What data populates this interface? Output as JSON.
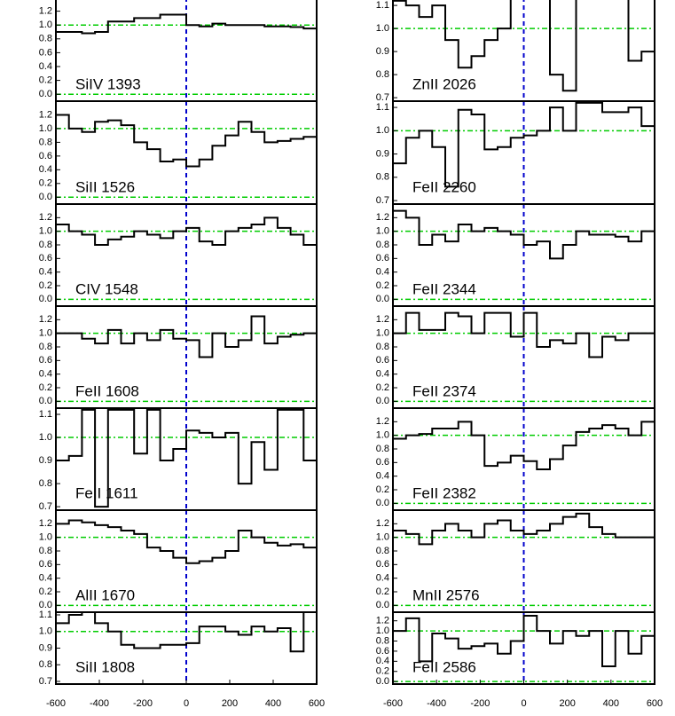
{
  "chart_data": [
    {
      "type": "line",
      "step": true,
      "label": "SiIV 1393",
      "color": "#000000",
      "xlim": [
        -600,
        600
      ],
      "ylim": [
        -0.1,
        1.4
      ],
      "yticks": [
        {
          "value": 0,
          "label": "0.0"
        },
        0.2,
        0.4,
        0.6,
        0.8,
        {
          "value": 1,
          "label": "1.0"
        },
        1.2
      ],
      "reference_lines": [
        0,
        1
      ],
      "reference_color": "#00cc00",
      "vline": 0,
      "vline_color": "#0000cc",
      "x": [
        -570,
        -510,
        -450,
        -390,
        -330,
        -270,
        -210,
        -150,
        -90,
        -30,
        30,
        90,
        150,
        210,
        270,
        330,
        390,
        450,
        510,
        570
      ],
      "values": [
        0.9,
        0.9,
        0.88,
        0.9,
        1.05,
        1.05,
        1.1,
        1.1,
        1.15,
        1.15,
        1.0,
        0.98,
        1.02,
        1.0,
        1.0,
        1.0,
        0.98,
        0.98,
        0.97,
        0.95
      ]
    },
    {
      "type": "line",
      "step": true,
      "label": "SiII 1526",
      "color": "#000000",
      "xlim": [
        -600,
        600
      ],
      "ylim": [
        -0.1,
        1.4
      ],
      "yticks": [
        {
          "value": 0,
          "label": "0.0"
        },
        0.2,
        0.4,
        0.6,
        0.8,
        {
          "value": 1,
          "label": "1.0"
        },
        1.2
      ],
      "reference_lines": [
        0,
        1
      ],
      "reference_color": "#00cc00",
      "vline": 0,
      "vline_color": "#0000cc",
      "x": [
        -570,
        -510,
        -450,
        -390,
        -330,
        -270,
        -210,
        -150,
        -90,
        -30,
        30,
        90,
        150,
        210,
        270,
        330,
        390,
        450,
        510,
        570
      ],
      "values": [
        1.2,
        1.0,
        0.95,
        1.1,
        1.12,
        1.05,
        0.8,
        0.7,
        0.52,
        0.55,
        0.45,
        0.55,
        0.75,
        0.9,
        1.1,
        0.95,
        0.8,
        0.82,
        0.85,
        0.88
      ]
    },
    {
      "type": "line",
      "step": true,
      "label": "CIV 1548",
      "color": "#000000",
      "xlim": [
        -600,
        600
      ],
      "ylim": [
        -0.1,
        1.4
      ],
      "yticks": [
        {
          "value": 0,
          "label": "0.0"
        },
        0.2,
        0.4,
        0.6,
        0.8,
        {
          "value": 1,
          "label": "1.0"
        },
        1.2
      ],
      "reference_lines": [
        0,
        1
      ],
      "reference_color": "#00cc00",
      "vline": 0,
      "vline_color": "#0000cc",
      "x": [
        -570,
        -510,
        -450,
        -390,
        -330,
        -270,
        -210,
        -150,
        -90,
        -30,
        30,
        90,
        150,
        210,
        270,
        330,
        390,
        450,
        510,
        570
      ],
      "values": [
        1.1,
        1.0,
        0.95,
        0.8,
        0.88,
        0.92,
        1.0,
        0.95,
        0.9,
        1.0,
        1.05,
        0.85,
        0.8,
        1.0,
        1.05,
        1.1,
        1.2,
        1.05,
        0.95,
        0.8
      ]
    },
    {
      "type": "line",
      "step": true,
      "label": "FeII 1608",
      "color": "#000000",
      "xlim": [
        -600,
        600
      ],
      "ylim": [
        -0.1,
        1.4
      ],
      "yticks": [
        {
          "value": 0,
          "label": "0.0"
        },
        0.2,
        0.4,
        0.6,
        0.8,
        {
          "value": 1,
          "label": "1.0"
        },
        1.2
      ],
      "reference_lines": [
        0,
        1
      ],
      "reference_color": "#00cc00",
      "vline": 0,
      "vline_color": "#0000cc",
      "x": [
        -570,
        -510,
        -450,
        -390,
        -330,
        -270,
        -210,
        -150,
        -90,
        -30,
        30,
        90,
        150,
        210,
        270,
        330,
        390,
        450,
        510,
        570
      ],
      "values": [
        1.0,
        1.0,
        0.92,
        0.85,
        1.05,
        0.85,
        1.0,
        0.9,
        1.05,
        0.92,
        0.9,
        0.65,
        1.0,
        0.8,
        0.9,
        1.25,
        0.85,
        0.95,
        0.98,
        1.0
      ]
    },
    {
      "type": "line",
      "step": true,
      "label": "FeII 1611",
      "color": "#000000",
      "xlim": [
        -600,
        600
      ],
      "ylim": [
        0.685,
        1.127
      ],
      "yticks": [
        0.7,
        0.8,
        0.9,
        {
          "value": 1,
          "label": "1.0"
        },
        1.1
      ],
      "reference_lines": [
        1
      ],
      "reference_color": "#00cc00",
      "vline": 0,
      "vline_color": "#0000cc",
      "x": [
        -570,
        -510,
        -450,
        -390,
        -330,
        -270,
        -210,
        -150,
        -90,
        -30,
        30,
        90,
        150,
        210,
        270,
        330,
        390,
        450,
        510,
        570
      ],
      "values": [
        0.9,
        0.92,
        1.12,
        0.7,
        1.12,
        1.12,
        0.93,
        1.12,
        0.9,
        0.95,
        1.03,
        1.02,
        1.0,
        1.02,
        0.8,
        0.98,
        0.86,
        1.12,
        1.12,
        0.9
      ]
    },
    {
      "type": "line",
      "step": true,
      "label": "AlII 1670",
      "color": "#000000",
      "xlim": [
        -600,
        600
      ],
      "ylim": [
        -0.1,
        1.4
      ],
      "yticks": [
        {
          "value": 0,
          "label": "0.0"
        },
        0.2,
        0.4,
        0.6,
        0.8,
        {
          "value": 1,
          "label": "1.0"
        },
        1.2
      ],
      "reference_lines": [
        0,
        1
      ],
      "reference_color": "#00cc00",
      "vline": 0,
      "vline_color": "#0000cc",
      "x": [
        -570,
        -510,
        -450,
        -390,
        -330,
        -270,
        -210,
        -150,
        -90,
        -30,
        30,
        90,
        150,
        210,
        270,
        330,
        390,
        450,
        510,
        570
      ],
      "values": [
        1.2,
        1.25,
        1.22,
        1.18,
        1.15,
        1.1,
        1.05,
        0.85,
        0.8,
        0.7,
        0.62,
        0.65,
        0.7,
        0.8,
        1.1,
        1.0,
        0.92,
        0.88,
        0.9,
        0.85
      ]
    },
    {
      "type": "line",
      "step": true,
      "label": "SiII 1808",
      "color": "#000000",
      "xlim": [
        -600,
        600
      ],
      "ylim": [
        0.684,
        1.116
      ],
      "yticks": [
        0.7,
        0.8,
        0.9,
        {
          "value": 1,
          "label": "1.0"
        },
        1.1
      ],
      "reference_lines": [
        1
      ],
      "reference_color": "#00cc00",
      "vline": 0,
      "vline_color": "#0000cc",
      "xticks": [
        -600,
        -400,
        -200,
        0,
        200,
        400,
        600
      ],
      "x": [
        -570,
        -510,
        -450,
        -390,
        -330,
        -270,
        -210,
        -150,
        -90,
        -30,
        30,
        90,
        150,
        210,
        270,
        330,
        390,
        450,
        510,
        570
      ],
      "values": [
        1.05,
        1.1,
        1.12,
        1.05,
        1.0,
        0.92,
        0.9,
        0.9,
        0.92,
        0.92,
        0.93,
        1.03,
        1.03,
        1.0,
        0.98,
        1.03,
        1.0,
        1.02,
        0.88,
        1.12
      ]
    },
    {
      "type": "line",
      "step": true,
      "label": "ZnII 2026",
      "color": "#000000",
      "xlim": [
        -600,
        600
      ],
      "ylim": [
        0.685,
        1.135
      ],
      "yticks": [
        0.7,
        0.8,
        0.9,
        {
          "value": 1,
          "label": "1.0"
        },
        1.1
      ],
      "reference_lines": [
        1
      ],
      "reference_color": "#00cc00",
      "vline": 0,
      "vline_color": "#0000cc",
      "x": [
        -570,
        -510,
        -450,
        -390,
        -330,
        -270,
        -210,
        -150,
        -90,
        -30,
        30,
        90,
        150,
        210,
        270,
        330,
        390,
        450,
        510,
        570
      ],
      "values": [
        1.12,
        1.1,
        1.05,
        1.1,
        0.95,
        0.83,
        0.88,
        0.95,
        1.0,
        1.15,
        1.15,
        1.15,
        0.8,
        0.73,
        1.15,
        1.15,
        1.15,
        1.15,
        0.86,
        0.9
      ]
    },
    {
      "type": "line",
      "step": true,
      "label": "FeII 2260",
      "color": "#000000",
      "xlim": [
        -600,
        600
      ],
      "ylim": [
        0.685,
        1.127
      ],
      "yticks": [
        0.7,
        0.8,
        0.9,
        {
          "value": 1,
          "label": "1.0"
        },
        1.1
      ],
      "reference_lines": [
        1
      ],
      "reference_color": "#00cc00",
      "vline": 0,
      "vline_color": "#0000cc",
      "x": [
        -570,
        -510,
        -450,
        -390,
        -330,
        -270,
        -210,
        -150,
        -90,
        -30,
        30,
        90,
        150,
        210,
        270,
        330,
        390,
        450,
        510,
        570
      ],
      "values": [
        0.86,
        0.97,
        1.0,
        0.93,
        0.76,
        1.09,
        1.07,
        0.92,
        0.93,
        0.97,
        0.98,
        1.0,
        1.1,
        1.0,
        1.12,
        1.12,
        1.08,
        1.08,
        1.1,
        1.02
      ]
    },
    {
      "type": "line",
      "step": true,
      "label": "FeII 2344",
      "color": "#000000",
      "xlim": [
        -600,
        600
      ],
      "ylim": [
        -0.1,
        1.4
      ],
      "yticks": [
        {
          "value": 0,
          "label": "0.0"
        },
        0.2,
        0.4,
        0.6,
        0.8,
        {
          "value": 1,
          "label": "1.0"
        },
        1.2
      ],
      "reference_lines": [
        0,
        1
      ],
      "reference_color": "#00cc00",
      "vline": 0,
      "vline_color": "#0000cc",
      "x": [
        -570,
        -510,
        -450,
        -390,
        -330,
        -270,
        -210,
        -150,
        -90,
        -30,
        30,
        90,
        150,
        210,
        270,
        330,
        390,
        450,
        510,
        570
      ],
      "values": [
        1.3,
        1.2,
        0.8,
        0.95,
        0.85,
        1.1,
        1.0,
        1.05,
        1.0,
        0.95,
        0.8,
        0.85,
        0.6,
        0.8,
        1.0,
        0.95,
        0.95,
        0.92,
        0.85,
        1.0
      ]
    },
    {
      "type": "line",
      "step": true,
      "label": "FeII 2374",
      "color": "#000000",
      "xlim": [
        -600,
        600
      ],
      "ylim": [
        -0.1,
        1.4
      ],
      "yticks": [
        {
          "value": 0,
          "label": "0.0"
        },
        0.2,
        0.4,
        0.6,
        0.8,
        {
          "value": 1,
          "label": "1.0"
        },
        1.2
      ],
      "reference_lines": [
        0,
        1
      ],
      "reference_color": "#00cc00",
      "vline": 0,
      "vline_color": "#0000cc",
      "x": [
        -570,
        -510,
        -450,
        -390,
        -330,
        -270,
        -210,
        -150,
        -90,
        -30,
        30,
        90,
        150,
        210,
        270,
        330,
        390,
        450,
        510,
        570
      ],
      "values": [
        1.0,
        1.3,
        1.05,
        1.05,
        1.3,
        1.25,
        1.0,
        1.3,
        1.3,
        0.95,
        1.3,
        0.8,
        0.9,
        0.85,
        1.0,
        0.65,
        0.95,
        0.9,
        1.0,
        1.0
      ]
    },
    {
      "type": "line",
      "step": true,
      "label": "FeII 2382",
      "color": "#000000",
      "xlim": [
        -600,
        600
      ],
      "ylim": [
        -0.1,
        1.4
      ],
      "yticks": [
        {
          "value": 0,
          "label": "0.0"
        },
        0.2,
        0.4,
        0.6,
        0.8,
        {
          "value": 1,
          "label": "1.0"
        },
        1.2
      ],
      "reference_lines": [
        0,
        1
      ],
      "reference_color": "#00cc00",
      "vline": 0,
      "vline_color": "#0000cc",
      "x": [
        -570,
        -510,
        -450,
        -390,
        -330,
        -270,
        -210,
        -150,
        -90,
        -30,
        30,
        90,
        150,
        210,
        270,
        330,
        390,
        450,
        510,
        570
      ],
      "values": [
        0.95,
        1.0,
        1.02,
        1.1,
        1.1,
        1.2,
        1.0,
        0.55,
        0.6,
        0.7,
        0.62,
        0.5,
        0.65,
        0.85,
        1.05,
        1.1,
        1.15,
        1.1,
        1.0,
        1.2
      ]
    },
    {
      "type": "line",
      "step": true,
      "label": "MnII 2576",
      "color": "#000000",
      "xlim": [
        -600,
        600
      ],
      "ylim": [
        -0.1,
        1.4
      ],
      "yticks": [
        {
          "value": 0,
          "label": "0.0"
        },
        0.2,
        0.4,
        0.6,
        0.8,
        {
          "value": 1,
          "label": "1.0"
        },
        1.2
      ],
      "reference_lines": [
        0,
        1
      ],
      "reference_color": "#00cc00",
      "vline": 0,
      "vline_color": "#0000cc",
      "x": [
        -570,
        -510,
        -450,
        -390,
        -330,
        -270,
        -210,
        -150,
        -90,
        -30,
        30,
        90,
        150,
        210,
        270,
        330,
        390,
        450,
        510,
        570
      ],
      "values": [
        1.1,
        1.05,
        0.9,
        1.1,
        1.2,
        1.1,
        1.0,
        1.2,
        1.25,
        1.1,
        1.05,
        1.1,
        1.2,
        1.3,
        1.35,
        1.15,
        1.05,
        1.0,
        1.0,
        1.0
      ]
    },
    {
      "type": "line",
      "step": true,
      "label": "FeII 2586",
      "color": "#000000",
      "xlim": [
        -600,
        600
      ],
      "ylim": [
        -0.05,
        1.37
      ],
      "yticks": [
        {
          "value": 0,
          "label": "0.0"
        },
        0.2,
        0.4,
        0.6,
        0.8,
        {
          "value": 1,
          "label": "1.0"
        },
        1.2
      ],
      "reference_lines": [
        0,
        1
      ],
      "reference_color": "#00cc00",
      "vline": 0,
      "vline_color": "#0000cc",
      "xticks": [
        -600,
        -400,
        -200,
        0,
        200,
        400,
        600
      ],
      "x": [
        -570,
        -510,
        -450,
        -390,
        -330,
        -270,
        -210,
        -150,
        -90,
        -30,
        30,
        90,
        150,
        210,
        270,
        330,
        390,
        450,
        510,
        570
      ],
      "values": [
        1.0,
        1.25,
        0.4,
        0.95,
        0.85,
        0.65,
        0.7,
        0.75,
        0.55,
        0.8,
        1.3,
        1.0,
        0.75,
        1.0,
        0.9,
        1.0,
        0.3,
        1.0,
        0.55,
        0.9
      ]
    }
  ]
}
